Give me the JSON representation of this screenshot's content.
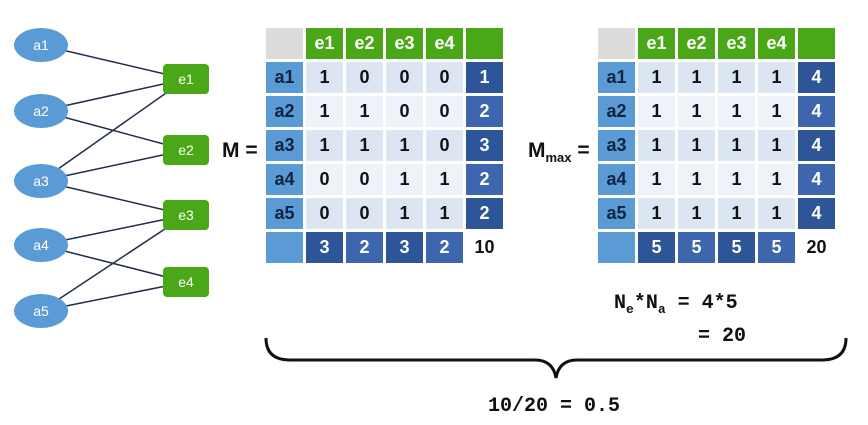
{
  "graph": {
    "a_nodes": [
      "a1",
      "a2",
      "a3",
      "a4",
      "a5"
    ],
    "e_nodes": [
      "e1",
      "e2",
      "e3",
      "e4"
    ],
    "edges": [
      [
        "a1",
        "e1"
      ],
      [
        "a2",
        "e1"
      ],
      [
        "a2",
        "e2"
      ],
      [
        "a3",
        "e1"
      ],
      [
        "a3",
        "e2"
      ],
      [
        "a3",
        "e3"
      ],
      [
        "a4",
        "e3"
      ],
      [
        "a4",
        "e4"
      ],
      [
        "a5",
        "e3"
      ],
      [
        "a5",
        "e4"
      ]
    ],
    "colors": {
      "a_node": "#5b9bd5",
      "e_node": "#4aa818",
      "edge": "#1f2d4a"
    }
  },
  "matrix_m": {
    "label": "M =",
    "col_headers": [
      "e1",
      "e2",
      "e3",
      "e4",
      ""
    ],
    "rows": [
      {
        "label": "a1",
        "values": [
          "1",
          "0",
          "0",
          "0"
        ],
        "sum": "1"
      },
      {
        "label": "a2",
        "values": [
          "1",
          "1",
          "0",
          "0"
        ],
        "sum": "2"
      },
      {
        "label": "a3",
        "values": [
          "1",
          "1",
          "1",
          "0"
        ],
        "sum": "3"
      },
      {
        "label": "a4",
        "values": [
          "0",
          "0",
          "1",
          "1"
        ],
        "sum": "2"
      },
      {
        "label": "a5",
        "values": [
          "0",
          "0",
          "1",
          "1"
        ],
        "sum": "2"
      }
    ],
    "col_sums": [
      "3",
      "2",
      "3",
      "2"
    ],
    "total": "10"
  },
  "matrix_max": {
    "label_main": "M",
    "label_sub": "max",
    "label_eq": " =",
    "col_headers": [
      "e1",
      "e2",
      "e3",
      "e4",
      ""
    ],
    "rows": [
      {
        "label": "a1",
        "values": [
          "1",
          "1",
          "1",
          "1"
        ],
        "sum": "4"
      },
      {
        "label": "a2",
        "values": [
          "1",
          "1",
          "1",
          "1"
        ],
        "sum": "4"
      },
      {
        "label": "a3",
        "values": [
          "1",
          "1",
          "1",
          "1"
        ],
        "sum": "4"
      },
      {
        "label": "a4",
        "values": [
          "1",
          "1",
          "1",
          "1"
        ],
        "sum": "4"
      },
      {
        "label": "a5",
        "values": [
          "1",
          "1",
          "1",
          "1"
        ],
        "sum": "4"
      }
    ],
    "col_sums": [
      "5",
      "5",
      "5",
      "5"
    ],
    "total": "20"
  },
  "formula": {
    "n1": "N",
    "n1_sub": "e",
    "op": "*",
    "n2": "N",
    "n2_sub": "a",
    "rhs": " = 4*5",
    "line2": "= 20"
  },
  "result": "10/20 = 0.5"
}
